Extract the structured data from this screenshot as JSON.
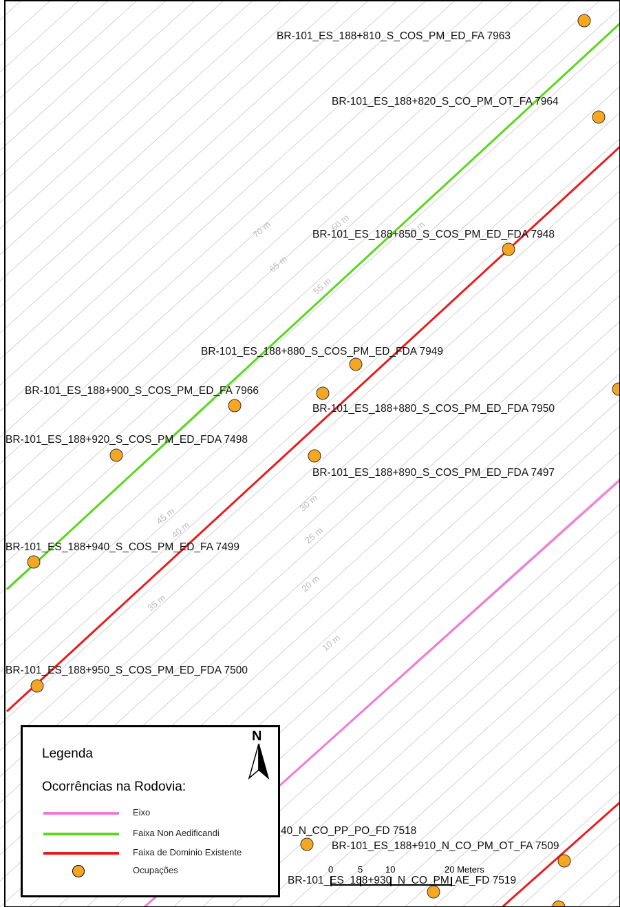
{
  "map": {
    "colors": {
      "eixo": "#f07ad8",
      "non_aedificandi": "#5ad61d",
      "dominio": "#e81c1c",
      "ocupacao_fill": "#f5a623",
      "hatch": "#c8c8c8",
      "distance_label": "#bbbbbb"
    },
    "occurrence_labels": [
      "BR-101_ES_188+810_S_COS_PM_ED_FA 7963",
      "BR-101_ES_188+820_S_CO_PM_OT_FA 7964",
      "BR-101_ES_188+850_S_COS_PM_ED_FDA 7948",
      "BR-101_ES_188+880_S_COS_PM_ED_FDA 7949",
      "BR-101_ES_188+900_S_COS_PM_ED_FA 7966",
      "BR-101_ES_188+880_S_COS_PM_ED_FDA 7950",
      "BR-101_ES_188+920_S_COS_PM_ED_FDA 7498",
      "BR-101_ES_188+890_S_COS_PM_ED_FDA 7497",
      "BR-101_ES_188+940_S_COS_PM_ED_FA 7499",
      "BR-101_ES_188+950_S_COS_PM_ED_FDA 7500",
      "40_N_CO_PP_PO_FD 7518",
      "BR-101_ES_188+910_N_CO_PM_OT_FA 7509",
      "BR-101_ES_188+930_N_CO_PM_AE_FD 7519"
    ],
    "distance_labels": [
      "70 m",
      "65 m",
      "60 m",
      "55 m",
      "50 m",
      "45 m",
      "40 m",
      "35 m",
      "30 m",
      "25 m",
      "20 m",
      "10 m"
    ],
    "scale_bar": {
      "ticks": [
        "0",
        "5",
        "10",
        "20 Meters"
      ]
    }
  },
  "legend": {
    "title": "Legenda",
    "subtitle": "Ocorrências na Rodovia:",
    "north": "N",
    "items": [
      {
        "label": "Eixo",
        "kind": "line",
        "color": "#f07ad8"
      },
      {
        "label": "Faixa Non Aedificandi",
        "kind": "line",
        "color": "#5ad61d"
      },
      {
        "label": "Faixa de Dominio Existente",
        "kind": "line",
        "color": "#e81c1c"
      },
      {
        "label": "Ocupações",
        "kind": "dot",
        "color": "#f5a623"
      }
    ]
  }
}
